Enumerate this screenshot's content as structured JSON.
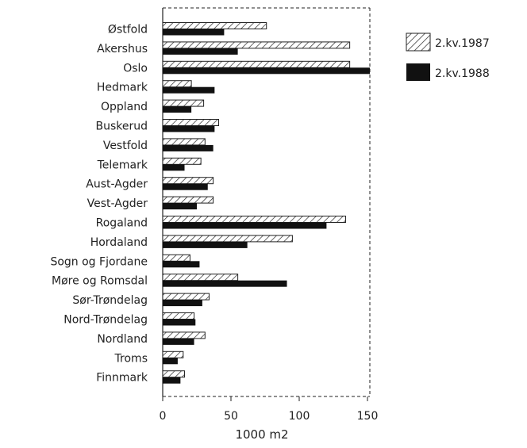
{
  "chart_data": {
    "type": "bar",
    "orientation": "horizontal",
    "categories": [
      "Østfold",
      "Akershus",
      "Oslo",
      "Hedmark",
      "Oppland",
      "Buskerud",
      "Vestfold",
      "Telemark",
      "Aust-Agder",
      "Vest-Agder",
      "Rogaland",
      "Hordaland",
      "Sogn og Fjordane",
      "Møre og Romsdal",
      "Sør-Trøndelag",
      "Nord-Trøndelag",
      "Nordland",
      "Troms",
      "Finnmark"
    ],
    "series": [
      {
        "name": "2.kv.1987",
        "pattern": "hatched",
        "values": [
          76,
          137,
          137,
          21,
          30,
          41,
          31,
          28,
          37,
          37,
          134,
          95,
          20,
          55,
          34,
          23,
          31,
          15,
          16
        ]
      },
      {
        "name": "2.kv.1988",
        "pattern": "solid",
        "values": [
          45,
          55,
          152,
          38,
          21,
          38,
          37,
          16,
          33,
          25,
          120,
          62,
          27,
          91,
          29,
          24,
          23,
          11,
          13
        ]
      }
    ],
    "xlabel": "1000 m2",
    "xticks": [
      0,
      50,
      100,
      150
    ],
    "xlim": [
      0,
      155
    ],
    "legend": "right",
    "colors": {
      "solid": "#111111",
      "hatch": "#222222"
    }
  }
}
